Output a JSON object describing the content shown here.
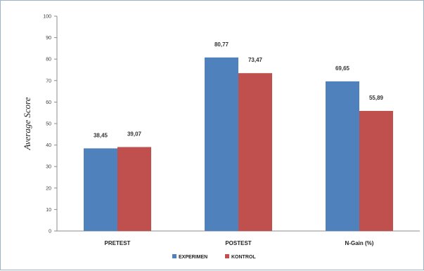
{
  "chart_data": {
    "type": "bar",
    "ylabel": "Average Score",
    "xlabel": "",
    "ylim": [
      0,
      100
    ],
    "yticks": [
      0,
      10,
      20,
      30,
      40,
      50,
      60,
      70,
      80,
      90,
      100
    ],
    "categories": [
      "PRETEST",
      "POSTEST",
      "N-Gain (%)"
    ],
    "series": [
      {
        "name": "EXPERIMEN",
        "color": "#4f81bd",
        "values": [
          38.45,
          80.77,
          69.65
        ],
        "labels": [
          "38,45",
          "80,77",
          "69,65"
        ]
      },
      {
        "name": "KONTROL",
        "color": "#c0504d",
        "values": [
          39.07,
          73.47,
          55.89
        ],
        "labels": [
          "39,07",
          "73,47",
          "55,89"
        ]
      }
    ],
    "legend_position": "bottom",
    "grid": false
  }
}
